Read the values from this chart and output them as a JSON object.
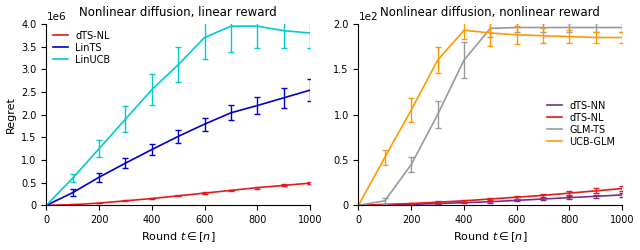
{
  "left": {
    "title": "Nonlinear diffusion, linear reward",
    "xlabel": "Round $t \\in [n]$",
    "ylabel": "Regret",
    "xlim": [
      0,
      1000
    ],
    "ylim": [
      0,
      4000000
    ],
    "yticks": [
      0,
      500000,
      1000000,
      1500000,
      2000000,
      2500000,
      3000000,
      3500000,
      4000000
    ],
    "yscale_label": "1e6",
    "series": [
      {
        "label": "dTS-NL",
        "color": "#e41a1c",
        "x": [
          0,
          100,
          200,
          300,
          400,
          500,
          600,
          700,
          800,
          900,
          1000
        ],
        "y": [
          0,
          15000,
          50000,
          100000,
          150000,
          210000,
          270000,
          330000,
          390000,
          440000,
          490000
        ],
        "yerr": [
          0,
          4000,
          7000,
          9000,
          11000,
          13000,
          15000,
          17000,
          19000,
          22000,
          25000
        ]
      },
      {
        "label": "LinTS",
        "color": "#0000cc",
        "x": [
          0,
          100,
          200,
          300,
          400,
          500,
          600,
          700,
          800,
          900,
          1000
        ],
        "y": [
          0,
          280000,
          620000,
          930000,
          1230000,
          1520000,
          1790000,
          2040000,
          2200000,
          2370000,
          2540000
        ],
        "yerr": [
          0,
          70000,
          95000,
          115000,
          125000,
          135000,
          145000,
          165000,
          195000,
          215000,
          245000
        ]
      },
      {
        "label": "LinUCB",
        "color": "#00cccc",
        "x": [
          0,
          100,
          200,
          300,
          400,
          500,
          600,
          700,
          800,
          900,
          1000
        ],
        "y": [
          0,
          600000,
          1250000,
          1900000,
          2550000,
          3100000,
          3700000,
          3950000,
          3950000,
          3850000,
          3800000
        ],
        "yerr": [
          0,
          90000,
          190000,
          290000,
          340000,
          390000,
          480000,
          580000,
          480000,
          380000,
          340000
        ]
      }
    ]
  },
  "right": {
    "title": "Nonlinear diffusion, nonlinear reward",
    "xlabel": "Round $t \\in [n]$",
    "ylabel": "",
    "xlim": [
      0,
      1000
    ],
    "ylim": [
      0,
      200
    ],
    "yticks": [
      0,
      50,
      100,
      150,
      200
    ],
    "yscale_label": "1e2",
    "series": [
      {
        "label": "dTS-NN",
        "color": "#7b2d8b",
        "x": [
          0,
          100,
          200,
          300,
          400,
          500,
          600,
          700,
          800,
          900,
          1000
        ],
        "y": [
          0,
          0.5,
          1.0,
          2.0,
          3.0,
          4.0,
          5.5,
          7.0,
          8.5,
          10.0,
          11.5
        ],
        "yerr": [
          0,
          0.3,
          0.5,
          0.7,
          0.8,
          1.0,
          1.2,
          1.3,
          1.5,
          1.7,
          2.0
        ]
      },
      {
        "label": "dTS-NL",
        "color": "#e41a1c",
        "x": [
          0,
          100,
          200,
          300,
          400,
          500,
          600,
          700,
          800,
          900,
          1000
        ],
        "y": [
          0,
          1.0,
          2.0,
          3.5,
          5.0,
          7.0,
          9.0,
          11.0,
          13.5,
          16.0,
          18.5
        ],
        "yerr": [
          0,
          0.5,
          0.8,
          1.0,
          1.2,
          1.5,
          1.8,
          2.0,
          2.5,
          2.8,
          3.2
        ]
      },
      {
        "label": "GLM-TS",
        "color": "#999999",
        "x": [
          0,
          100,
          200,
          300,
          400,
          500,
          600,
          700,
          800,
          900,
          1000
        ],
        "y": [
          0,
          5,
          45,
          100,
          160,
          195,
          196,
          196,
          196,
          196,
          196
        ],
        "yerr": [
          0,
          3,
          8,
          15,
          20,
          10,
          5,
          5,
          5,
          5,
          5
        ]
      },
      {
        "label": "UCB-GLM",
        "color": "#ff9900",
        "x": [
          0,
          100,
          200,
          300,
          400,
          500,
          600,
          700,
          800,
          900,
          1000
        ],
        "y": [
          0,
          53,
          105,
          160,
          193,
          190,
          188,
          187,
          186,
          185,
          185
        ],
        "yerr": [
          0,
          8,
          13,
          14,
          10,
          14,
          10,
          8,
          7,
          6,
          6
        ]
      }
    ]
  }
}
